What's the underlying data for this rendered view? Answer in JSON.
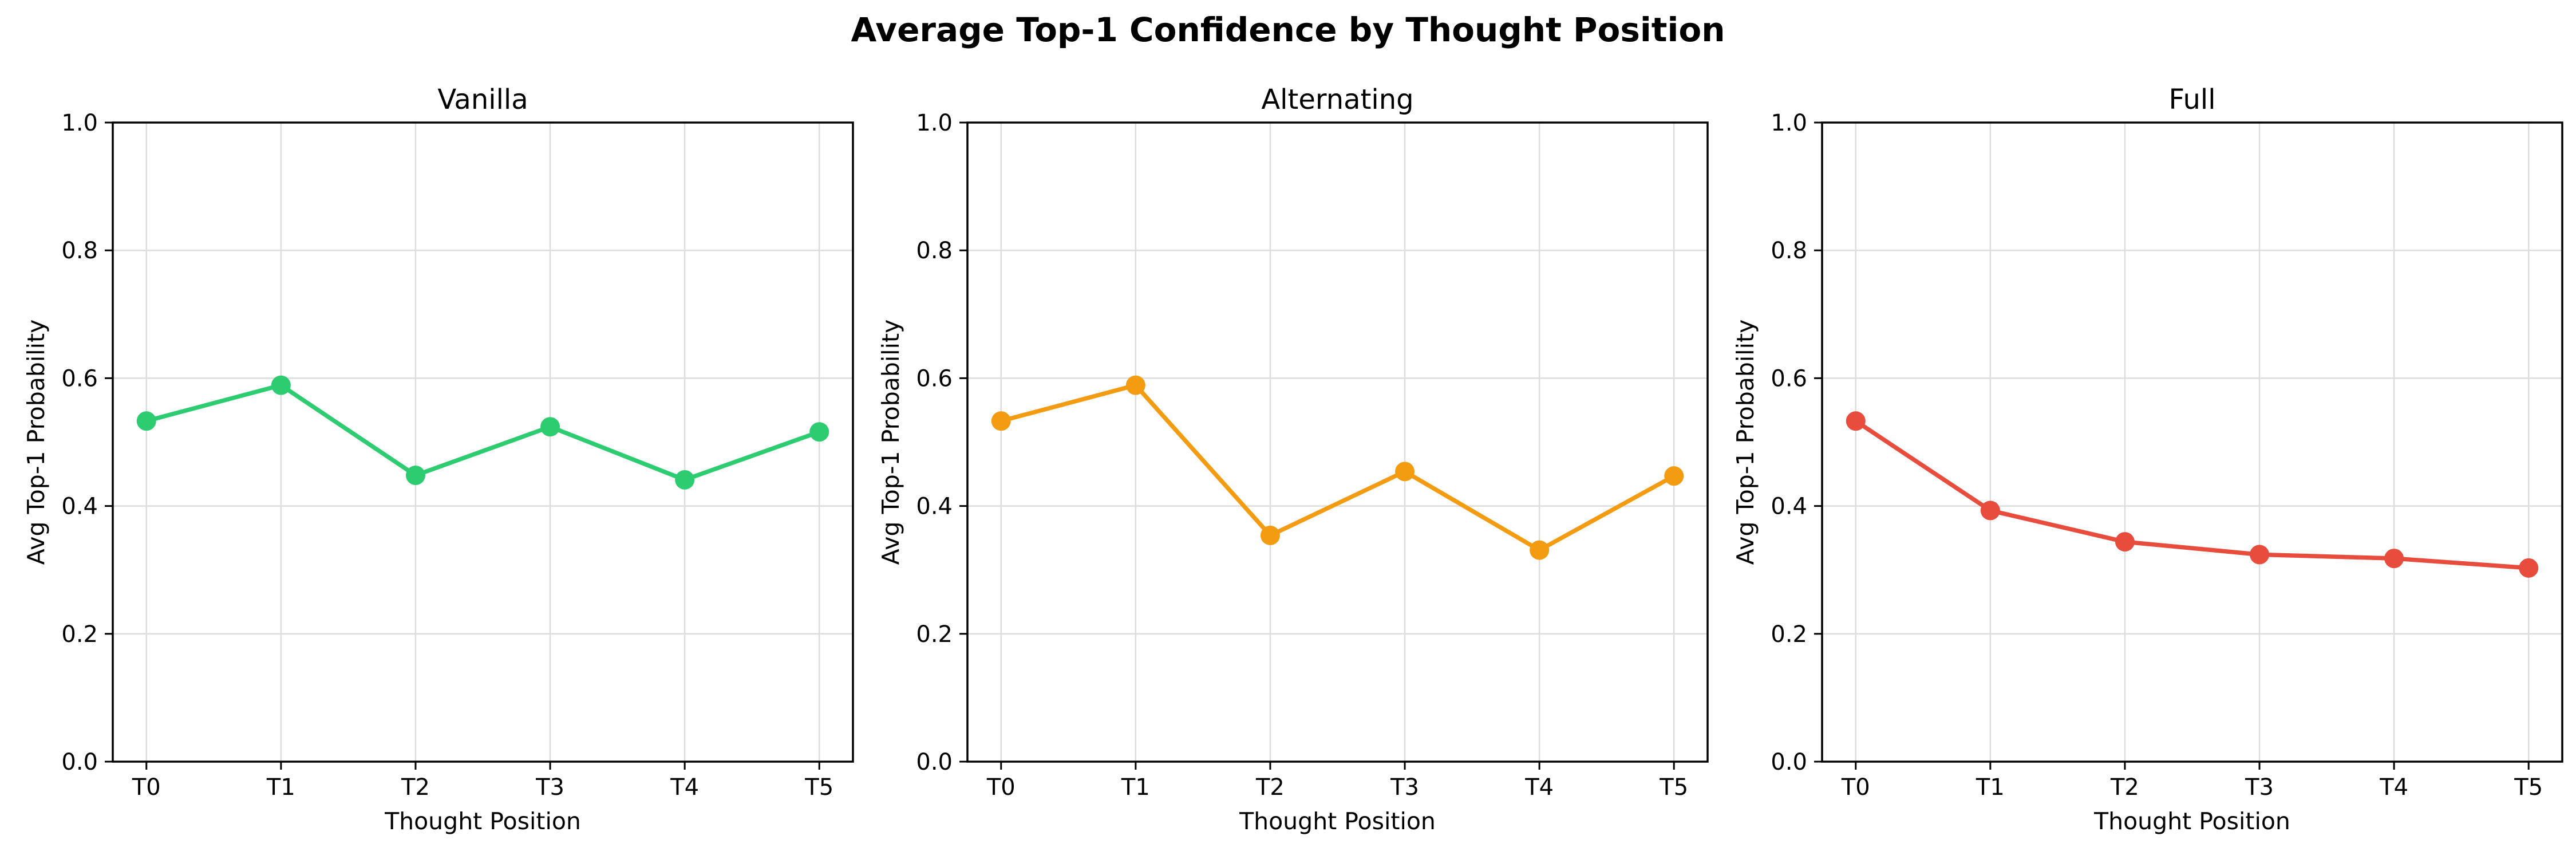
{
  "figure_title": "Average Top-1 Confidence by Thought Position",
  "chart_data": [
    {
      "type": "line",
      "title": "Vanilla",
      "xlabel": "Thought Position",
      "ylabel": "Avg Top-1 Probability",
      "categories": [
        "T0",
        "T1",
        "T2",
        "T3",
        "T4",
        "T5"
      ],
      "ylim": [
        0,
        1
      ],
      "yticks": [
        "0.0",
        "0.2",
        "0.4",
        "0.6",
        "0.8",
        "1.0"
      ],
      "grid": true,
      "color": "#2ecc71",
      "values": [
        0.533,
        0.589,
        0.448,
        0.524,
        0.441,
        0.516
      ]
    },
    {
      "type": "line",
      "title": "Alternating",
      "xlabel": "Thought Position",
      "ylabel": "Avg Top-1 Probability",
      "categories": [
        "T0",
        "T1",
        "T2",
        "T3",
        "T4",
        "T5"
      ],
      "ylim": [
        0,
        1
      ],
      "yticks": [
        "0.0",
        "0.2",
        "0.4",
        "0.6",
        "0.8",
        "1.0"
      ],
      "grid": true,
      "color": "#f39c12",
      "values": [
        0.533,
        0.589,
        0.354,
        0.454,
        0.331,
        0.447
      ]
    },
    {
      "type": "line",
      "title": "Full",
      "xlabel": "Thought Position",
      "ylabel": "Avg Top-1 Probability",
      "categories": [
        "T0",
        "T1",
        "T2",
        "T3",
        "T4",
        "T5"
      ],
      "ylim": [
        0,
        1
      ],
      "yticks": [
        "0.0",
        "0.2",
        "0.4",
        "0.6",
        "0.8",
        "1.0"
      ],
      "grid": true,
      "color": "#e74c3c",
      "values": [
        0.533,
        0.393,
        0.344,
        0.324,
        0.318,
        0.303
      ]
    }
  ]
}
